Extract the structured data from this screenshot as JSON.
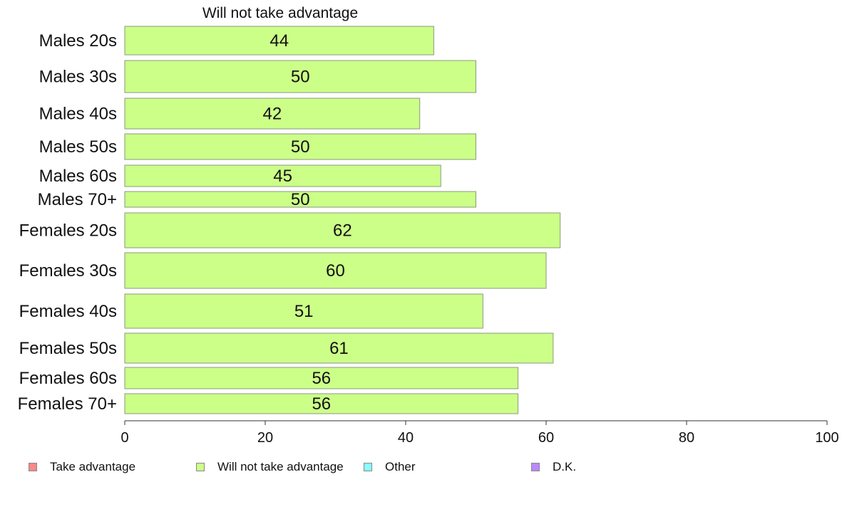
{
  "chart_data": {
    "type": "bar",
    "orientation": "horizontal",
    "title": "Will not take advantage",
    "categories": [
      "Males 20s",
      "Males 30s",
      "Males 40s",
      "Males 50s",
      "Males 60s",
      "Males 70+",
      "Females 20s",
      "Females 30s",
      "Females 40s",
      "Females 50s",
      "Females 60s",
      "Females 70+"
    ],
    "series": [
      {
        "name": "Will not take advantage",
        "color": "#ccff88",
        "values": [
          44,
          50,
          42,
          50,
          45,
          50,
          62,
          60,
          51,
          61,
          56,
          56
        ],
        "labels": [
          "44",
          "50",
          "42",
          "50",
          "45",
          "50",
          "62",
          "60",
          "51",
          "61",
          "56",
          "56"
        ]
      }
    ],
    "xlim": [
      0,
      100
    ],
    "xticks": [
      "0",
      "20",
      "40",
      "60",
      "80",
      "100"
    ],
    "grid": false,
    "legend": {
      "position": "bottom",
      "items": [
        {
          "label": "Take advantage",
          "color": "#ff8888"
        },
        {
          "label": "Will not take advantage",
          "color": "#ccff88"
        },
        {
          "label": "Other",
          "color": "#88ffff"
        },
        {
          "label": "D.K.",
          "color": "#bb88ff"
        }
      ]
    }
  }
}
